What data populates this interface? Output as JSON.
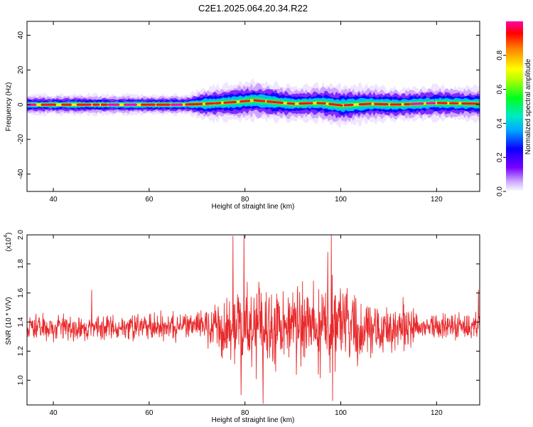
{
  "title": "C2E1.2025.064.20.34.R22",
  "chart_data": [
    {
      "type": "heatmap",
      "xlabel": "Height of straight line (km)",
      "ylabel": "Frequency (Hz)",
      "xlim": [
        34.5,
        129
      ],
      "ylim": [
        -50,
        48
      ],
      "xticks": [
        40,
        60,
        80,
        100,
        120
      ],
      "yticks": [
        -40,
        -20,
        0,
        20,
        40
      ],
      "colorbar": {
        "label": "Normalized spectral amplitude",
        "range": [
          0.0,
          1.0
        ],
        "ticks": [
          "0.0",
          "0.2",
          "0.4",
          "0.6",
          "0.8"
        ],
        "colormap": "rainbow (white-violet-blue-cyan-green-yellow-orange-red-magenta)"
      },
      "ridge": [
        {
          "x": 35,
          "y": 0
        },
        {
          "x": 40,
          "y": 0
        },
        {
          "x": 50,
          "y": 0
        },
        {
          "x": 60,
          "y": 0
        },
        {
          "x": 67,
          "y": 0
        },
        {
          "x": 72,
          "y": 0.5
        },
        {
          "x": 78,
          "y": 1.5
        },
        {
          "x": 82,
          "y": 2.5
        },
        {
          "x": 86,
          "y": 1.5
        },
        {
          "x": 90,
          "y": 0.5
        },
        {
          "x": 96,
          "y": 1.0
        },
        {
          "x": 100,
          "y": -0.5
        },
        {
          "x": 106,
          "y": 0.5
        },
        {
          "x": 112,
          "y": 0
        },
        {
          "x": 120,
          "y": 1.0
        },
        {
          "x": 129,
          "y": 0.5
        }
      ],
      "spread_hz": [
        {
          "x": 35,
          "y": 3
        },
        {
          "x": 68,
          "y": 3
        },
        {
          "x": 72,
          "y": 5
        },
        {
          "x": 84,
          "y": 6
        },
        {
          "x": 92,
          "y": 5
        },
        {
          "x": 100,
          "y": 6
        },
        {
          "x": 110,
          "y": 5
        },
        {
          "x": 129,
          "y": 5
        }
      ]
    },
    {
      "type": "line",
      "xlabel": "Height of straight line (km)",
      "ylabel": "SNR (10 * V/V)",
      "scale_label": "(x10^4)",
      "xlim": [
        34.5,
        129
      ],
      "ylim": [
        0.83,
        2.0
      ],
      "xticks": [
        40,
        60,
        80,
        100,
        120
      ],
      "yticks": [
        "1.0",
        "1.2",
        "1.4",
        "1.6",
        "1.8",
        "2.0"
      ],
      "line_color": "#e8292b",
      "series": [
        {
          "envelope": [
            {
              "x": 34.5,
              "mean": 1.36,
              "amp": 0.12
            },
            {
              "x": 70,
              "mean": 1.37,
              "amp": 0.13
            },
            {
              "x": 74,
              "mean": 1.36,
              "amp": 0.28
            },
            {
              "x": 80,
              "mean": 1.36,
              "amp": 0.42
            },
            {
              "x": 90,
              "mean": 1.37,
              "amp": 0.36
            },
            {
              "x": 98,
              "mean": 1.37,
              "amp": 0.44
            },
            {
              "x": 104,
              "mean": 1.36,
              "amp": 0.34
            },
            {
              "x": 111,
              "mean": 1.36,
              "amp": 0.26
            },
            {
              "x": 117,
              "mean": 1.36,
              "amp": 0.12
            },
            {
              "x": 129,
              "mean": 1.37,
              "amp": 0.14
            }
          ],
          "peaks": [
            {
              "x": 48,
              "y": 1.62
            },
            {
              "x": 77.5,
              "y": 1.99
            },
            {
              "x": 79.2,
              "y": 0.9
            },
            {
              "x": 79.8,
              "y": 2.0
            },
            {
              "x": 83.8,
              "y": 0.84
            },
            {
              "x": 92,
              "y": 1.68
            },
            {
              "x": 97.3,
              "y": 1.88
            },
            {
              "x": 98.0,
              "y": 2.0
            },
            {
              "x": 98.3,
              "y": 0.86
            },
            {
              "x": 113,
              "y": 1.57
            },
            {
              "x": 128.7,
              "y": 1.62
            }
          ]
        }
      ]
    }
  ]
}
